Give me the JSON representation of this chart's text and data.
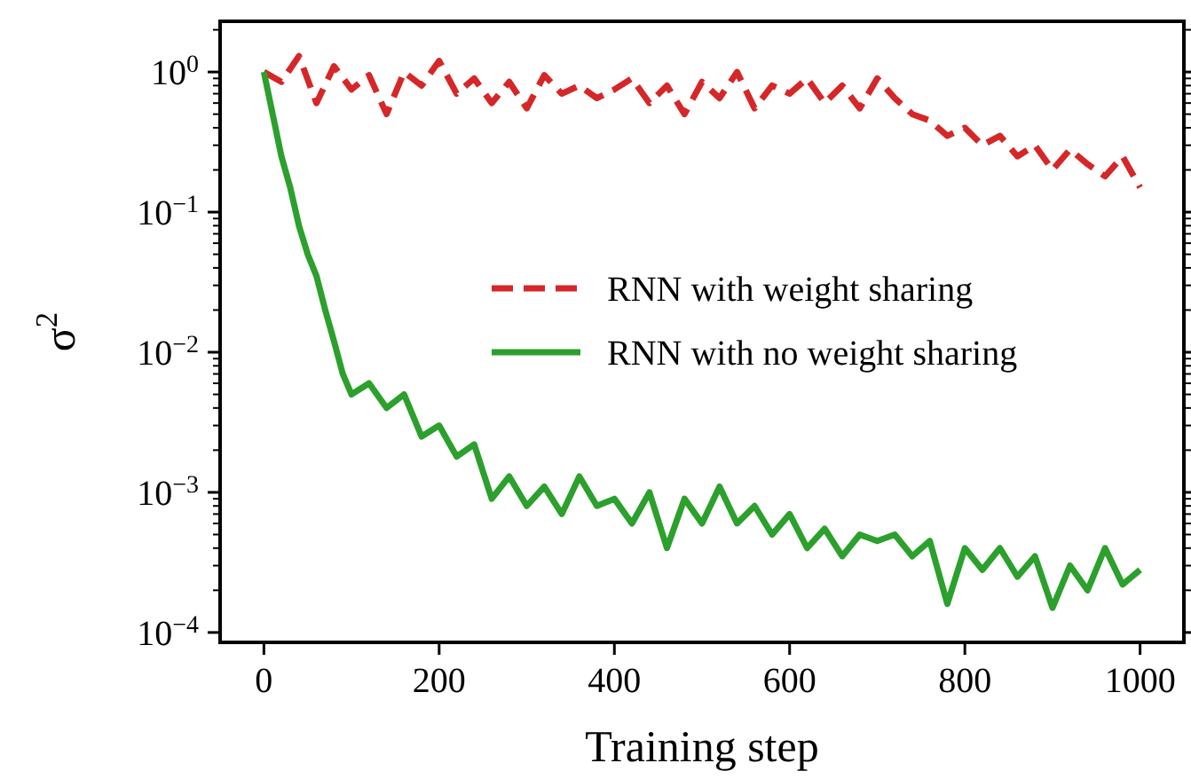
{
  "chart_data": {
    "type": "line",
    "xlabel": "Training step",
    "ylabel": "σ$^{2}$",
    "log": "y",
    "legend": "center right",
    "grid": false,
    "xlim": [
      -50,
      1050
    ],
    "xticks": [
      0,
      200,
      400,
      600,
      800,
      1000
    ],
    "ylim": [
      8.5e-05,
      2.3
    ],
    "yticks": [
      {
        "value": 0.0001,
        "label": "10$^{−4}$"
      },
      {
        "value": 0.0002,
        "label": null
      },
      {
        "value": 0.0003,
        "label": null
      },
      {
        "value": 0.0004,
        "label": null
      },
      {
        "value": 0.0005,
        "label": null
      },
      {
        "value": 0.0006,
        "label": null
      },
      {
        "value": 0.0007,
        "label": null
      },
      {
        "value": 0.0008,
        "label": null
      },
      {
        "value": 0.0009,
        "label": null
      },
      {
        "value": 0.001,
        "label": "10$^{−3}$"
      },
      {
        "value": 0.002,
        "label": null
      },
      {
        "value": 0.003,
        "label": null
      },
      {
        "value": 0.004,
        "label": null
      },
      {
        "value": 0.005,
        "label": null
      },
      {
        "value": 0.006,
        "label": null
      },
      {
        "value": 0.007,
        "label": null
      },
      {
        "value": 0.008,
        "label": null
      },
      {
        "value": 0.009,
        "label": null
      },
      {
        "value": 0.01,
        "label": "10$^{−2}$"
      },
      {
        "value": 0.02,
        "label": null
      },
      {
        "value": 0.03,
        "label": null
      },
      {
        "value": 0.04,
        "label": null
      },
      {
        "value": 0.05,
        "label": null
      },
      {
        "value": 0.06,
        "label": null
      },
      {
        "value": 0.07,
        "label": null
      },
      {
        "value": 0.08,
        "label": null
      },
      {
        "value": 0.09,
        "label": null
      },
      {
        "value": 0.1,
        "label": "10$^{−1}$"
      },
      {
        "value": 0.2,
        "label": null
      },
      {
        "value": 0.3,
        "label": null
      },
      {
        "value": 0.4,
        "label": null
      },
      {
        "value": 0.5,
        "label": null
      },
      {
        "value": 0.6,
        "label": null
      },
      {
        "value": 0.7,
        "label": null
      },
      {
        "value": 0.8,
        "label": null
      },
      {
        "value": 0.9,
        "label": null
      },
      {
        "value": 1,
        "label": "10$^{0}$"
      },
      {
        "value": 2,
        "label": null
      }
    ],
    "series": [
      {
        "name": "RNN with weight sharing",
        "color": "#d62728",
        "line_style": "dashed",
        "x": [
          0,
          20,
          40,
          60,
          80,
          100,
          120,
          140,
          160,
          180,
          200,
          220,
          240,
          260,
          280,
          300,
          320,
          340,
          360,
          380,
          400,
          420,
          440,
          460,
          480,
          500,
          520,
          540,
          560,
          580,
          600,
          620,
          640,
          660,
          680,
          700,
          720,
          740,
          760,
          780,
          800,
          820,
          840,
          860,
          880,
          900,
          920,
          940,
          960,
          980,
          1000
        ],
        "values": [
          1.0,
          0.85,
          1.3,
          0.6,
          1.1,
          0.75,
          0.95,
          0.5,
          1.0,
          0.8,
          1.2,
          0.7,
          0.9,
          0.6,
          0.85,
          0.55,
          0.95,
          0.7,
          0.8,
          0.65,
          0.75,
          0.9,
          0.6,
          0.8,
          0.5,
          0.85,
          0.65,
          1.0,
          0.55,
          0.8,
          0.7,
          0.9,
          0.6,
          0.8,
          0.55,
          0.9,
          0.65,
          0.5,
          0.45,
          0.35,
          0.4,
          0.3,
          0.35,
          0.25,
          0.3,
          0.2,
          0.28,
          0.22,
          0.18,
          0.25,
          0.15
        ]
      },
      {
        "name": "RNN with no weight sharing",
        "color": "#2ca02c",
        "line_style": "solid",
        "x": [
          0,
          10,
          20,
          30,
          40,
          50,
          60,
          70,
          80,
          90,
          100,
          120,
          140,
          160,
          180,
          200,
          220,
          240,
          260,
          280,
          300,
          320,
          340,
          360,
          380,
          400,
          420,
          440,
          460,
          480,
          500,
          520,
          540,
          560,
          580,
          600,
          620,
          640,
          660,
          680,
          700,
          720,
          740,
          760,
          780,
          800,
          820,
          840,
          860,
          880,
          900,
          920,
          940,
          960,
          980,
          1000
        ],
        "values": [
          1.0,
          0.5,
          0.25,
          0.15,
          0.08,
          0.05,
          0.035,
          0.02,
          0.012,
          0.007,
          0.005,
          0.006,
          0.004,
          0.005,
          0.0025,
          0.003,
          0.0018,
          0.0022,
          0.0009,
          0.0013,
          0.0008,
          0.0011,
          0.0007,
          0.0013,
          0.0008,
          0.0009,
          0.0006,
          0.001,
          0.0004,
          0.0009,
          0.0006,
          0.0011,
          0.0006,
          0.0008,
          0.0005,
          0.0007,
          0.0004,
          0.00055,
          0.00035,
          0.0005,
          0.00045,
          0.0005,
          0.00035,
          0.00045,
          0.00016,
          0.0004,
          0.00028,
          0.0004,
          0.00025,
          0.00035,
          0.00015,
          0.0003,
          0.0002,
          0.0004,
          0.00022,
          0.00028
        ]
      }
    ]
  }
}
